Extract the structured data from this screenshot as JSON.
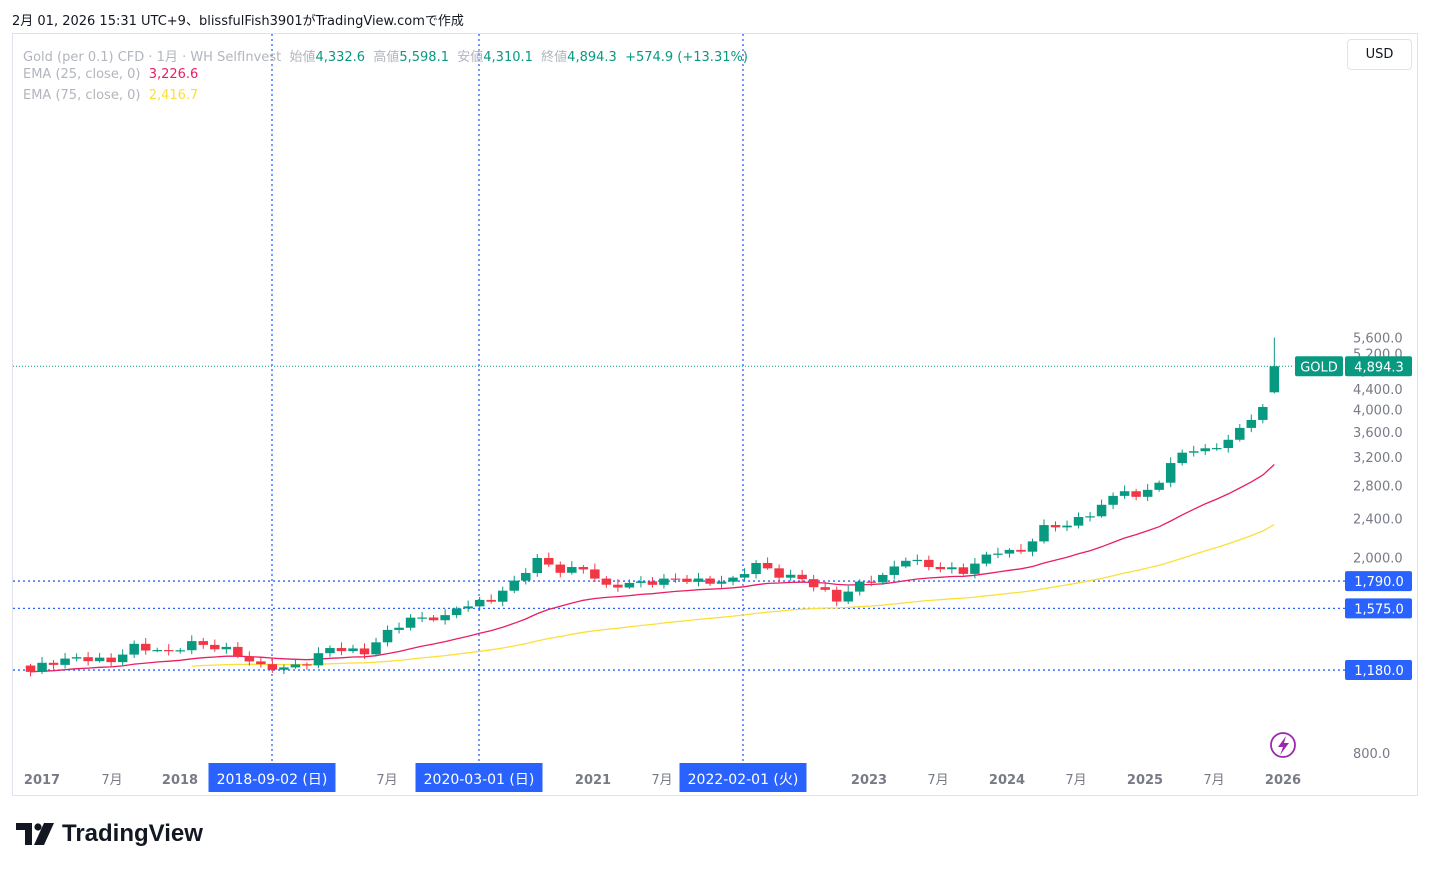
{
  "header": {
    "top_text": "2月 01, 2026 15:31 UTC+9、blissfulFish3901がTradingView.comで作成"
  },
  "legend": {
    "symbol": "Gold (per 0.1) CFD · 1月 · WH SelfInvest",
    "open_label": "始値",
    "open": "4,332.6",
    "high_label": "高値",
    "high": "5,598.1",
    "low_label": "安値",
    "low": "4,310.1",
    "close_label": "終値",
    "close": "4,894.3",
    "change": "+574.9 (+13.31%)",
    "ema25_label": "EMA (25, close, 0)",
    "ema25_value": "3,226.6",
    "ema75_label": "EMA (75, close, 0)",
    "ema75_value": "2,416.7"
  },
  "currency_button": "USD",
  "watermark": "TradingView",
  "colors": {
    "up": "#089981",
    "down": "#f23645",
    "ema25": "#e91e63",
    "ema75": "#fbe03a",
    "crosshair": "#2962ff",
    "axis_text": "#787b86"
  },
  "chart_data": {
    "type": "candlestick",
    "title": "Gold (per 0.1) CFD · 1月 · WH SelfInvest",
    "interval": "1月",
    "currency": "USD",
    "ylim": [
      700,
      5700
    ],
    "y_ticks": [
      "5,600.0",
      "5,200.0",
      "4,800.0",
      "4,400.0",
      "4,000.0",
      "3,600.0",
      "3,200.0",
      "2,800.0",
      "2,400.0",
      "2,000.0",
      "800.0"
    ],
    "x_ticks": [
      "2017",
      "7月",
      "2018",
      "7月",
      "2021",
      "7月",
      "2023",
      "7月",
      "2024",
      "7月",
      "2025",
      "7月",
      "2026"
    ],
    "price_label": {
      "name": "GOLD",
      "value": "4,894.3"
    },
    "horizontal_lines": [
      {
        "value": "1,790.0"
      },
      {
        "value": "1,575.0"
      },
      {
        "value": "1,180.0"
      }
    ],
    "vertical_lines": [
      {
        "label": "2018-09-02 (日)"
      },
      {
        "label": "2020-03-01 (日)"
      },
      {
        "label": "2022-02-01 (火)"
      }
    ],
    "anchor_points": [
      [
        2016.917,
        1170
      ],
      [
        2017.0,
        1210
      ],
      [
        2017.25,
        1250
      ],
      [
        2017.5,
        1230
      ],
      [
        2017.667,
        1320
      ],
      [
        2017.917,
        1280
      ],
      [
        2018.083,
        1340
      ],
      [
        2018.333,
        1300
      ],
      [
        2018.583,
        1200
      ],
      [
        2018.75,
        1190
      ],
      [
        2018.917,
        1220
      ],
      [
        2019.083,
        1310
      ],
      [
        2019.333,
        1280
      ],
      [
        2019.5,
        1410
      ],
      [
        2019.667,
        1500
      ],
      [
        2019.917,
        1510
      ],
      [
        2020.0,
        1580
      ],
      [
        2020.25,
        1640
      ],
      [
        2020.417,
        1780
      ],
      [
        2020.583,
        1980
      ],
      [
        2020.75,
        1880
      ],
      [
        2020.917,
        1900
      ],
      [
        2021.083,
        1740
      ],
      [
        2021.25,
        1770
      ],
      [
        2021.417,
        1780
      ],
      [
        2021.583,
        1810
      ],
      [
        2021.833,
        1780
      ],
      [
        2022.0,
        1800
      ],
      [
        2022.167,
        1940
      ],
      [
        2022.333,
        1840
      ],
      [
        2022.5,
        1810
      ],
      [
        2022.75,
        1640
      ],
      [
        2022.917,
        1770
      ],
      [
        2023.083,
        1830
      ],
      [
        2023.25,
        1990
      ],
      [
        2023.417,
        1920
      ],
      [
        2023.667,
        1870
      ],
      [
        2023.833,
        2010
      ],
      [
        2023.917,
        2060
      ],
      [
        2024.083,
        2050
      ],
      [
        2024.25,
        2300
      ],
      [
        2024.417,
        2330
      ],
      [
        2024.583,
        2450
      ],
      [
        2024.75,
        2650
      ],
      [
        2024.833,
        2760
      ],
      [
        2024.917,
        2630
      ],
      [
        2025.083,
        2860
      ],
      [
        2025.25,
        3290
      ],
      [
        2025.417,
        3300
      ],
      [
        2025.583,
        3450
      ],
      [
        2025.75,
        3850
      ],
      [
        2025.833,
        4000
      ],
      [
        2025.917,
        4320
      ],
      [
        2026.0,
        4894.3
      ]
    ],
    "last_candle": {
      "open": 4332.6,
      "high": 5598.1,
      "low": 4310.1,
      "close": 4894.3
    }
  }
}
